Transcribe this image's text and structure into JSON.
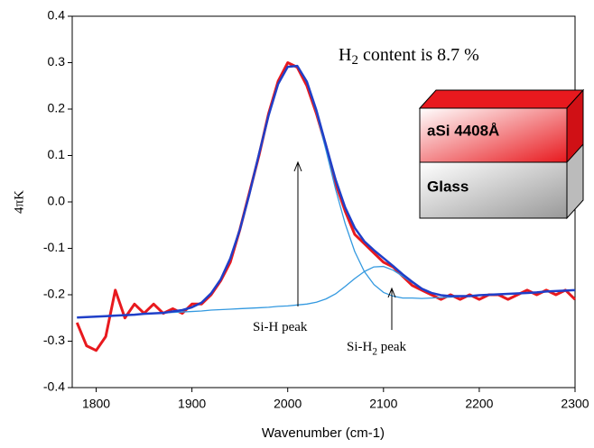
{
  "chart_data": {
    "type": "line",
    "x_label": "Wavenumber (cm-1)",
    "y_label": "4πK",
    "x": [
      1780,
      1790,
      1800,
      1810,
      1820,
      1830,
      1840,
      1850,
      1860,
      1870,
      1880,
      1890,
      1900,
      1910,
      1920,
      1930,
      1940,
      1950,
      1960,
      1970,
      1980,
      1990,
      2000,
      2010,
      2020,
      2030,
      2040,
      2050,
      2060,
      2070,
      2080,
      2090,
      2100,
      2110,
      2120,
      2130,
      2140,
      2150,
      2160,
      2170,
      2180,
      2190,
      2200,
      2210,
      2220,
      2230,
      2240,
      2250,
      2260,
      2270,
      2280,
      2290,
      2300
    ],
    "series": [
      {
        "color": "#e8191e",
        "values": [
          -0.26,
          -0.31,
          -0.32,
          -0.29,
          -0.19,
          -0.25,
          -0.22,
          -0.24,
          -0.22,
          -0.24,
          -0.23,
          -0.24,
          -0.22,
          -0.22,
          -0.2,
          -0.17,
          -0.13,
          -0.06,
          0.02,
          0.1,
          0.19,
          0.26,
          0.3,
          0.29,
          0.25,
          0.19,
          0.12,
          0.04,
          -0.02,
          -0.07,
          -0.09,
          -0.11,
          -0.13,
          -0.14,
          -0.16,
          -0.18,
          -0.19,
          -0.2,
          -0.21,
          -0.2,
          -0.21,
          -0.2,
          -0.21,
          -0.2,
          -0.2,
          -0.21,
          -0.2,
          -0.19,
          -0.2,
          -0.19,
          -0.2,
          -0.19,
          -0.21
        ]
      },
      {
        "color": "#3399e0",
        "values": [
          -0.249,
          -0.248,
          -0.247,
          -0.246,
          -0.245,
          -0.244,
          -0.243,
          -0.241,
          -0.24,
          -0.239,
          -0.236,
          -0.233,
          -0.227,
          -0.217,
          -0.197,
          -0.167,
          -0.122,
          -0.06,
          0.017,
          0.103,
          0.186,
          0.254,
          0.291,
          0.292,
          0.257,
          0.192,
          0.111,
          0.027,
          -0.047,
          -0.107,
          -0.15,
          -0.178,
          -0.195,
          -0.203,
          -0.207,
          -0.207,
          -0.208,
          -0.207,
          -0.206,
          -0.205,
          -0.204,
          -0.203,
          -0.201,
          -0.2,
          -0.199,
          -0.198,
          -0.197,
          -0.196,
          -0.195,
          -0.193,
          -0.192,
          -0.191,
          -0.19
        ]
      },
      {
        "color": "#3399e0",
        "values": [
          -0.249,
          -0.248,
          -0.247,
          -0.246,
          -0.245,
          -0.244,
          -0.243,
          -0.241,
          -0.24,
          -0.239,
          -0.238,
          -0.237,
          -0.236,
          -0.235,
          -0.233,
          -0.232,
          -0.231,
          -0.23,
          -0.229,
          -0.228,
          -0.227,
          -0.225,
          -0.224,
          -0.222,
          -0.22,
          -0.216,
          -0.209,
          -0.198,
          -0.182,
          -0.165,
          -0.15,
          -0.14,
          -0.139,
          -0.147,
          -0.16,
          -0.174,
          -0.187,
          -0.196,
          -0.201,
          -0.203,
          -0.203,
          -0.203,
          -0.201,
          -0.2,
          -0.199,
          -0.198,
          -0.197,
          -0.196,
          -0.195,
          -0.193,
          -0.192,
          -0.191,
          -0.19
        ]
      },
      {
        "color": "#1f3fc8",
        "values": [
          -0.249,
          -0.248,
          -0.247,
          -0.246,
          -0.245,
          -0.244,
          -0.243,
          -0.241,
          -0.24,
          -0.239,
          -0.236,
          -0.233,
          -0.227,
          -0.217,
          -0.197,
          -0.167,
          -0.122,
          -0.06,
          0.017,
          0.103,
          0.186,
          0.254,
          0.291,
          0.293,
          0.259,
          0.197,
          0.122,
          0.048,
          -0.012,
          -0.056,
          -0.085,
          -0.104,
          -0.121,
          -0.138,
          -0.156,
          -0.172,
          -0.187,
          -0.196,
          -0.201,
          -0.203,
          -0.203,
          -0.203,
          -0.201,
          -0.2,
          -0.199,
          -0.198,
          -0.197,
          -0.196,
          -0.195,
          -0.193,
          -0.192,
          -0.191,
          -0.19
        ]
      }
    ],
    "xlim": [
      1775,
      2300
    ],
    "xticks": [
      1800,
      1900,
      2000,
      2100,
      2200,
      2300
    ],
    "ylim": [
      -0.4,
      0.4
    ],
    "yticks": [
      0.4,
      0.3,
      0.2,
      0.1,
      {
        "value": 0,
        "label": "0.0"
      },
      -0.1,
      -0.2,
      -0.3,
      -0.4
    ],
    "annotations": [
      {
        "base": "H",
        "sub": "2",
        "rest": " content is 8.7 %"
      },
      {
        "base": "Si-H peak"
      },
      {
        "base": "Si-H",
        "sub": "2",
        "rest": " peak"
      }
    ]
  },
  "inset": {
    "layers": [
      "aSi 4408Å",
      "Glass"
    ]
  }
}
